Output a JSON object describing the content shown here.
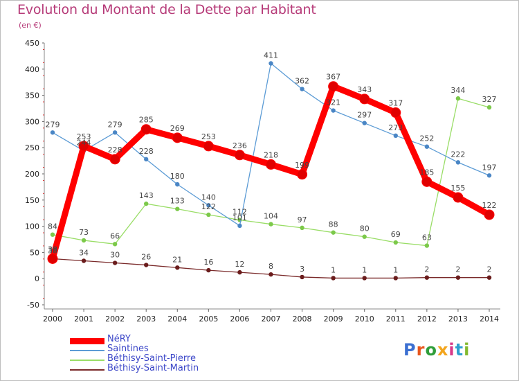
{
  "header": {
    "title": "Evolution du Montant de la Dette par Habitant",
    "subtitle": "(en €)"
  },
  "logo_text": "Proxiti",
  "chart_data": {
    "type": "line",
    "title": "Evolution du Montant de la Dette par Habitant",
    "ylabel": "(en €)",
    "xlabel": "",
    "x": [
      "2000",
      "2001",
      "2002",
      "2003",
      "2004",
      "2005",
      "2006",
      "2007",
      "2008",
      "2009",
      "2010",
      "2011",
      "2012",
      "2013",
      "2014"
    ],
    "ylim": [
      -50,
      450
    ],
    "yticks": [
      -50,
      0,
      50,
      100,
      150,
      200,
      250,
      300,
      350,
      400,
      450
    ],
    "grid": false,
    "legend_position": "bottom-left",
    "series": [
      {
        "name": "NéRY",
        "color": "#ff0000",
        "marker_color": "#e00000",
        "values": [
          38,
          253,
          228,
          285,
          269,
          253,
          236,
          218,
          199,
          367,
          343,
          317,
          185,
          155,
          122
        ],
        "labels": [
          "38",
          "253",
          "228",
          "285",
          "269",
          "253",
          "236",
          "218",
          "199",
          "367",
          "343",
          "317",
          "185",
          "155",
          "122"
        ]
      },
      {
        "name": "Saintines",
        "color": "#5b9bd5",
        "marker_color": "#4a86c5",
        "values": [
          279,
          244,
          279,
          228,
          180,
          140,
          101,
          411,
          362,
          321,
          297,
          273,
          252,
          222,
          197
        ],
        "labels": [
          "279",
          "244",
          "279",
          "228",
          "180",
          "140",
          "101",
          "411",
          "362",
          "321",
          "297",
          "273",
          "252",
          "222",
          "197"
        ]
      },
      {
        "name": "Béthisy-Saint-Pierre",
        "color": "#99dd66",
        "marker_color": "#7cc94a",
        "values": [
          84,
          73,
          66,
          143,
          133,
          122,
          112,
          104,
          97,
          88,
          80,
          69,
          63,
          344,
          327
        ],
        "labels": [
          "84",
          "73",
          "66",
          "143",
          "133",
          "122",
          "112",
          "104",
          "97",
          "88",
          "80",
          "69",
          "63",
          "344",
          "327"
        ]
      },
      {
        "name": "Béthisy-Saint-Martin",
        "color": "#7a2a2a",
        "marker_color": "#6a1c1c",
        "values": [
          38,
          34,
          30,
          26,
          21,
          16,
          12,
          8,
          3,
          1,
          1,
          1,
          2,
          2,
          2
        ],
        "labels": [
          "38",
          "34",
          "30",
          "26",
          "21",
          "16",
          "12",
          "8",
          "3",
          "1",
          "1",
          "1",
          "2",
          "2",
          "2"
        ]
      }
    ]
  }
}
